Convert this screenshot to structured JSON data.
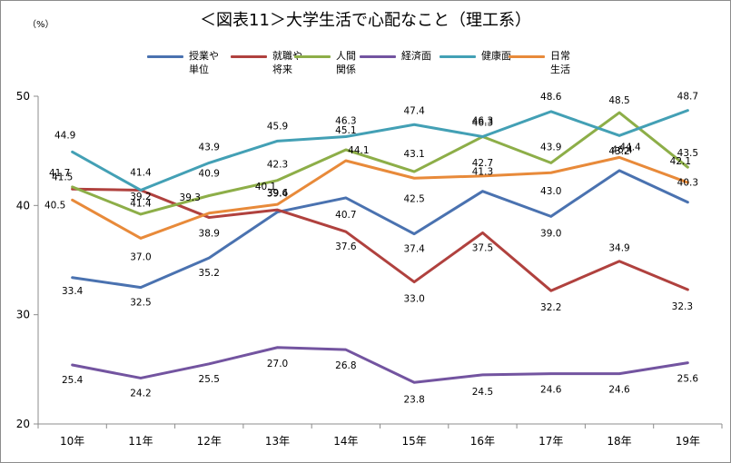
{
  "title": "＜図表11＞大学生活で心配なこと（理工系）",
  "unit": "（%）",
  "chart_data": {
    "type": "line",
    "categories": [
      "10年",
      "11年",
      "12年",
      "13年",
      "14年",
      "15年",
      "16年",
      "17年",
      "18年",
      "19年"
    ],
    "ylim": [
      20,
      50
    ],
    "yticks": [
      "20",
      "30",
      "40",
      "50"
    ],
    "grid": false,
    "legend_position": "top",
    "series": [
      {
        "name": "授業や\n単位",
        "color": "#4A72B0",
        "values": [
          33.4,
          32.5,
          35.2,
          39.4,
          40.7,
          37.4,
          41.3,
          39.0,
          43.2,
          40.3
        ]
      },
      {
        "name": "就職や\n将来",
        "color": "#B0413E",
        "values": [
          41.5,
          41.4,
          38.9,
          39.6,
          37.6,
          33.0,
          37.5,
          32.2,
          34.9,
          32.3
        ]
      },
      {
        "name": "人間\n関係",
        "color": "#8DAE48",
        "values": [
          41.7,
          39.2,
          40.9,
          42.3,
          45.1,
          43.1,
          46.3,
          43.9,
          48.5,
          43.5
        ]
      },
      {
        "name": "経済面",
        "color": "#7354A0",
        "values": [
          25.4,
          24.2,
          25.5,
          27.0,
          26.8,
          23.8,
          24.5,
          24.6,
          24.6,
          25.6
        ]
      },
      {
        "name": "健康面",
        "color": "#43A0B5",
        "values": [
          44.9,
          41.4,
          43.9,
          45.9,
          46.3,
          47.4,
          46.3,
          48.6,
          46.4,
          48.7
        ]
      },
      {
        "name": "日常\n生活",
        "color": "#E88A3A",
        "values": [
          40.5,
          37.0,
          39.3,
          40.1,
          44.1,
          42.5,
          42.7,
          43.0,
          44.4,
          42.1
        ]
      }
    ]
  }
}
